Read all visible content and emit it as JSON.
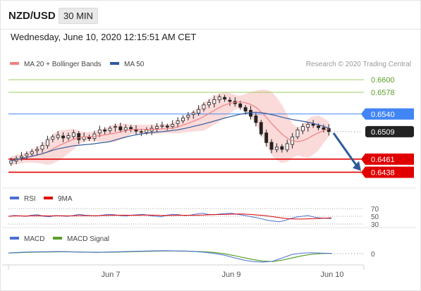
{
  "header": {
    "symbol": "NZD/USD",
    "timeframe": "30 MIN",
    "datetime": "Wednesday, June 10, 2020 12:15:51 AM CET"
  },
  "legend": {
    "ma20_label": "MA 20 + Bollinger Bands",
    "ma50_label": "MA 50",
    "credit": "Research © 2020 Trading Central",
    "rsi_label": "RSI",
    "rsi_ma_label": "9MA",
    "macd_label": "MACD",
    "macd_signal_label": "MACD Signal"
  },
  "colors": {
    "ma20": "#f08080",
    "ma50": "#2f5b9b",
    "bollinger_fill": "#fad3d3",
    "resistance": "#9ccc65",
    "pivot": "#4285f4",
    "support": "#e00000",
    "current": "#222222",
    "rsi": "#4a6fd6",
    "rsi_ma": "#e00000",
    "macd": "#4a6fd6",
    "macd_signal": "#5aa02c",
    "candle_up": "#ffffff",
    "candle_down": "#222222"
  },
  "chart_data": {
    "type": "candlestick",
    "ylim": [
      0.6425,
      0.6615
    ],
    "x_labels": [
      "Jun 7",
      "Jun 9",
      "Jun 10"
    ],
    "levels": [
      {
        "value": 0.66,
        "label": "0.6600",
        "kind": "resistance"
      },
      {
        "value": 0.6578,
        "label": "0.6578",
        "kind": "resistance"
      },
      {
        "value": 0.654,
        "label": "0.6540",
        "kind": "pivot"
      },
      {
        "value": 0.6509,
        "label": "0.6509",
        "kind": "current"
      },
      {
        "value": 0.6461,
        "label": "0.6461",
        "kind": "support"
      },
      {
        "value": 0.6438,
        "label": "0.6438",
        "kind": "support"
      }
    ],
    "close_approx": [
      0.6458,
      0.6462,
      0.6466,
      0.647,
      0.6474,
      0.6478,
      0.6485,
      0.6495,
      0.65,
      0.6503,
      0.6498,
      0.6502,
      0.6507,
      0.6495,
      0.65,
      0.6497,
      0.6505,
      0.6512,
      0.651,
      0.6515,
      0.6518,
      0.6512,
      0.6516,
      0.6514,
      0.651,
      0.6508,
      0.6512,
      0.6515,
      0.6518,
      0.652,
      0.6517,
      0.6522,
      0.6528,
      0.6533,
      0.6538,
      0.6542,
      0.6548,
      0.6556,
      0.656,
      0.6565,
      0.657,
      0.6566,
      0.6562,
      0.6558,
      0.6552,
      0.6545,
      0.6536,
      0.6525,
      0.6505,
      0.649,
      0.6478,
      0.6482,
      0.6478,
      0.6488,
      0.65,
      0.6512,
      0.6518,
      0.6522,
      0.652,
      0.6516,
      0.6513,
      0.6509
    ],
    "rsi": {
      "levels": [
        70,
        50,
        30
      ],
      "level_labels": [
        "70",
        "50",
        "30"
      ],
      "values": [
        50,
        52,
        51,
        50,
        53,
        54,
        50,
        49,
        52,
        51,
        50,
        52,
        55,
        53,
        52,
        51,
        53,
        55,
        54,
        52,
        51,
        53,
        54,
        55,
        52,
        50,
        49,
        53,
        55,
        54,
        52,
        53,
        56,
        58,
        55,
        54,
        56,
        57,
        58,
        55,
        53,
        50,
        47,
        44,
        40,
        38,
        36,
        39,
        44,
        48,
        50,
        52,
        48,
        46,
        45,
        44
      ]
    },
    "macd": {
      "zero_label": "0",
      "macd_values": [
        0.5,
        0.9,
        1.2,
        1.3,
        1.4,
        1.5,
        1.4,
        1.2,
        1.0,
        0.9,
        1.1,
        1.3,
        1.5,
        1.7,
        1.9,
        2.0,
        2.1,
        2.0,
        1.8,
        1.5,
        1.0,
        0.2,
        -1.0,
        -2.8,
        -4.5,
        -5.6,
        -6.0,
        -5.4,
        -3.0,
        -0.5,
        0.4,
        0.6,
        0.4,
        0.2
      ],
      "signal_values": [
        0.4,
        0.7,
        1.0,
        1.1,
        1.2,
        1.3,
        1.3,
        1.2,
        1.1,
        1.0,
        1.0,
        1.1,
        1.3,
        1.5,
        1.6,
        1.8,
        1.9,
        1.9,
        1.8,
        1.6,
        1.3,
        0.8,
        0.0,
        -1.3,
        -2.8,
        -4.2,
        -5.3,
        -5.6,
        -4.6,
        -3.0,
        -1.5,
        -0.4,
        0.1,
        0.2
      ]
    },
    "forecast_arrow": {
      "from_value": 0.6509,
      "to_value": 0.6438,
      "direction": "down"
    }
  }
}
